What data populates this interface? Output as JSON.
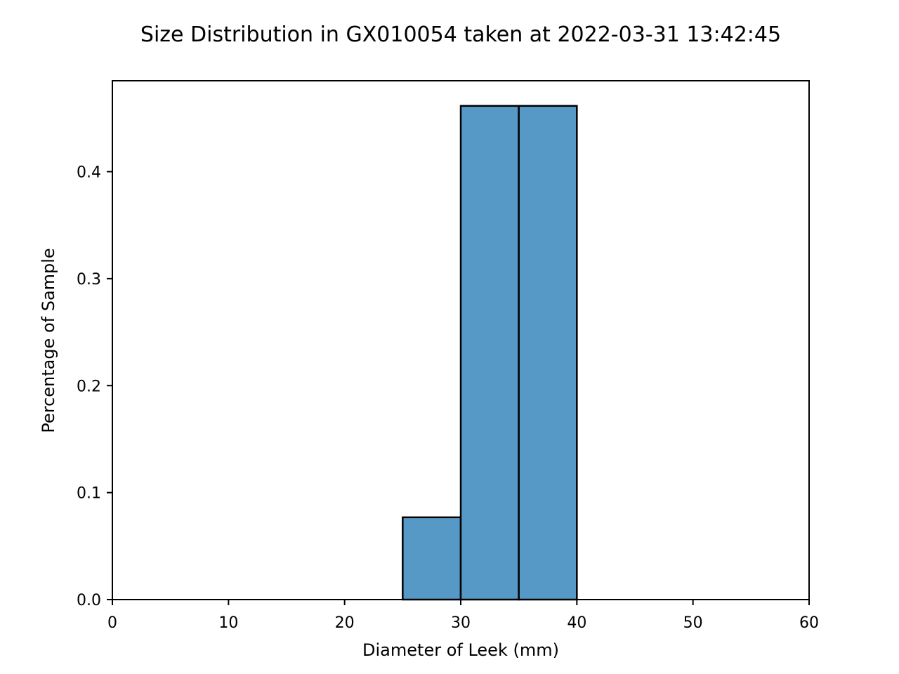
{
  "chart_data": {
    "type": "bar",
    "title": "Size Distribution in GX010054 taken at 2022-03-31 13:42:45",
    "xlabel": "Diameter of Leek (mm)",
    "ylabel": "Percentage of Sample",
    "xlim": [
      0,
      60
    ],
    "ylim": [
      0,
      0.485
    ],
    "xticks": [
      0,
      10,
      20,
      30,
      40,
      50,
      60
    ],
    "xtick_labels": [
      "0",
      "10",
      "20",
      "30",
      "40",
      "50",
      "60"
    ],
    "yticks": [
      0.0,
      0.1,
      0.2,
      0.3,
      0.4
    ],
    "ytick_labels": [
      "0.0",
      "0.1",
      "0.2",
      "0.3",
      "0.4"
    ],
    "bins": [
      {
        "x0": 25,
        "x1": 30,
        "value": 0.0769
      },
      {
        "x0": 30,
        "x1": 35,
        "value": 0.4615
      },
      {
        "x0": 35,
        "x1": 40,
        "value": 0.4615
      }
    ],
    "bar_color": "#5698c6",
    "grid": false,
    "legend": "none"
  }
}
